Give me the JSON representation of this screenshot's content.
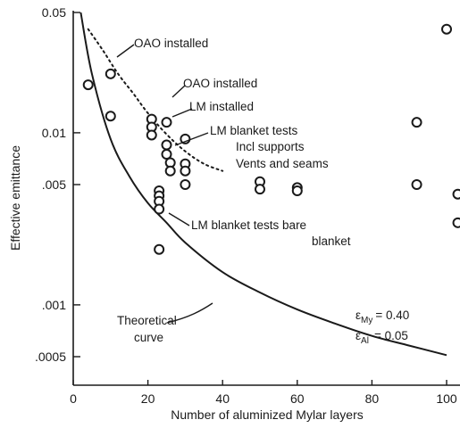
{
  "chart_data": {
    "type": "scatter",
    "xlabel": "Number of aluminized Mylar layers",
    "ylabel": "Effective emittance",
    "xlim": [
      0,
      103
    ],
    "ylim": [
      0.0004,
      0.05
    ],
    "yscale": "log",
    "grid": false,
    "x_ticks": [
      {
        "value": 0,
        "label": "0"
      },
      {
        "value": 20,
        "label": "20"
      },
      {
        "value": 40,
        "label": "40"
      },
      {
        "value": 60,
        "label": "60"
      },
      {
        "value": 80,
        "label": "80"
      },
      {
        "value": 100,
        "label": "100"
      }
    ],
    "y_ticks": [
      {
        "value": 0.05,
        "label": "0.05"
      },
      {
        "value": 0.01,
        "label": "0.01"
      },
      {
        "value": 0.005,
        "label": ".005"
      },
      {
        "value": 0.001,
        "label": ".001"
      },
      {
        "value": 0.0005,
        "label": ".0005"
      }
    ],
    "series": [
      {
        "points": [
          {
            "x": 4,
            "y": 0.019
          },
          {
            "x": 10,
            "y": 0.022
          },
          {
            "x": 10,
            "y": 0.0125
          },
          {
            "x": 21,
            "y": 0.012
          },
          {
            "x": 21,
            "y": 0.0108
          },
          {
            "x": 21,
            "y": 0.0097
          },
          {
            "x": 25,
            "y": 0.0115
          },
          {
            "x": 25,
            "y": 0.0085
          },
          {
            "x": 25,
            "y": 0.0075
          },
          {
            "x": 26,
            "y": 0.0067
          },
          {
            "x": 26,
            "y": 0.006
          },
          {
            "x": 30,
            "y": 0.0092
          },
          {
            "x": 30,
            "y": 0.0066
          },
          {
            "x": 30,
            "y": 0.006
          },
          {
            "x": 30,
            "y": 0.005
          },
          {
            "x": 23,
            "y": 0.0046
          },
          {
            "x": 23,
            "y": 0.0043
          },
          {
            "x": 23,
            "y": 0.004
          },
          {
            "x": 23,
            "y": 0.0036
          },
          {
            "x": 23,
            "y": 0.0021
          },
          {
            "x": 50,
            "y": 0.0052
          },
          {
            "x": 50,
            "y": 0.0047
          },
          {
            "x": 60,
            "y": 0.0048
          },
          {
            "x": 60,
            "y": 0.0046
          },
          {
            "x": 92,
            "y": 0.0115
          },
          {
            "x": 92,
            "y": 0.005
          },
          {
            "x": 100,
            "y": 0.04
          },
          {
            "x": 103,
            "y": 0.0044
          },
          {
            "x": 103,
            "y": 0.003
          }
        ]
      }
    ],
    "lines": [
      {
        "name": "Theoretical curve",
        "style": "solid",
        "points": [
          {
            "x": 2,
            "y": 0.05
          },
          {
            "x": 5,
            "y": 0.022
          },
          {
            "x": 10,
            "y": 0.0092
          },
          {
            "x": 15,
            "y": 0.0056
          },
          {
            "x": 20,
            "y": 0.0039
          },
          {
            "x": 25,
            "y": 0.003
          },
          {
            "x": 30,
            "y": 0.0023
          },
          {
            "x": 40,
            "y": 0.00155
          },
          {
            "x": 50,
            "y": 0.00118
          },
          {
            "x": 60,
            "y": 0.00094
          },
          {
            "x": 70,
            "y": 0.00078
          },
          {
            "x": 80,
            "y": 0.00066
          },
          {
            "x": 90,
            "y": 0.00058
          },
          {
            "x": 100,
            "y": 0.00051
          }
        ]
      },
      {
        "name": "LM blanket tests Incl supports Vents and seams",
        "style": "dotted",
        "points": [
          {
            "x": 4,
            "y": 0.04
          },
          {
            "x": 8,
            "y": 0.03
          },
          {
            "x": 12,
            "y": 0.022
          },
          {
            "x": 16,
            "y": 0.017
          },
          {
            "x": 20,
            "y": 0.013
          },
          {
            "x": 25,
            "y": 0.0098
          },
          {
            "x": 30,
            "y": 0.0078
          },
          {
            "x": 35,
            "y": 0.0066
          },
          {
            "x": 40,
            "y": 0.006
          }
        ]
      }
    ],
    "annotations": [
      {
        "id": "oao-installed-1",
        "lines": [
          "OAO installed"
        ]
      },
      {
        "id": "oao-installed-2",
        "lines": [
          "OAO installed"
        ]
      },
      {
        "id": "lm-installed",
        "lines": [
          "LM installed"
        ]
      },
      {
        "id": "lm-blanket-incl",
        "lines": [
          "LM blanket tests",
          "Incl supports",
          "Vents and seams"
        ]
      },
      {
        "id": "lm-blanket-bare",
        "lines": [
          "LM blanket tests bare",
          "blanket"
        ]
      },
      {
        "id": "theoretical",
        "lines": [
          "Theoretical",
          "curve"
        ]
      },
      {
        "id": "emissivities",
        "lines": [
          "ε",
          "My",
          "= 0.40",
          "ε",
          "Al",
          "= 0.05"
        ]
      }
    ]
  }
}
